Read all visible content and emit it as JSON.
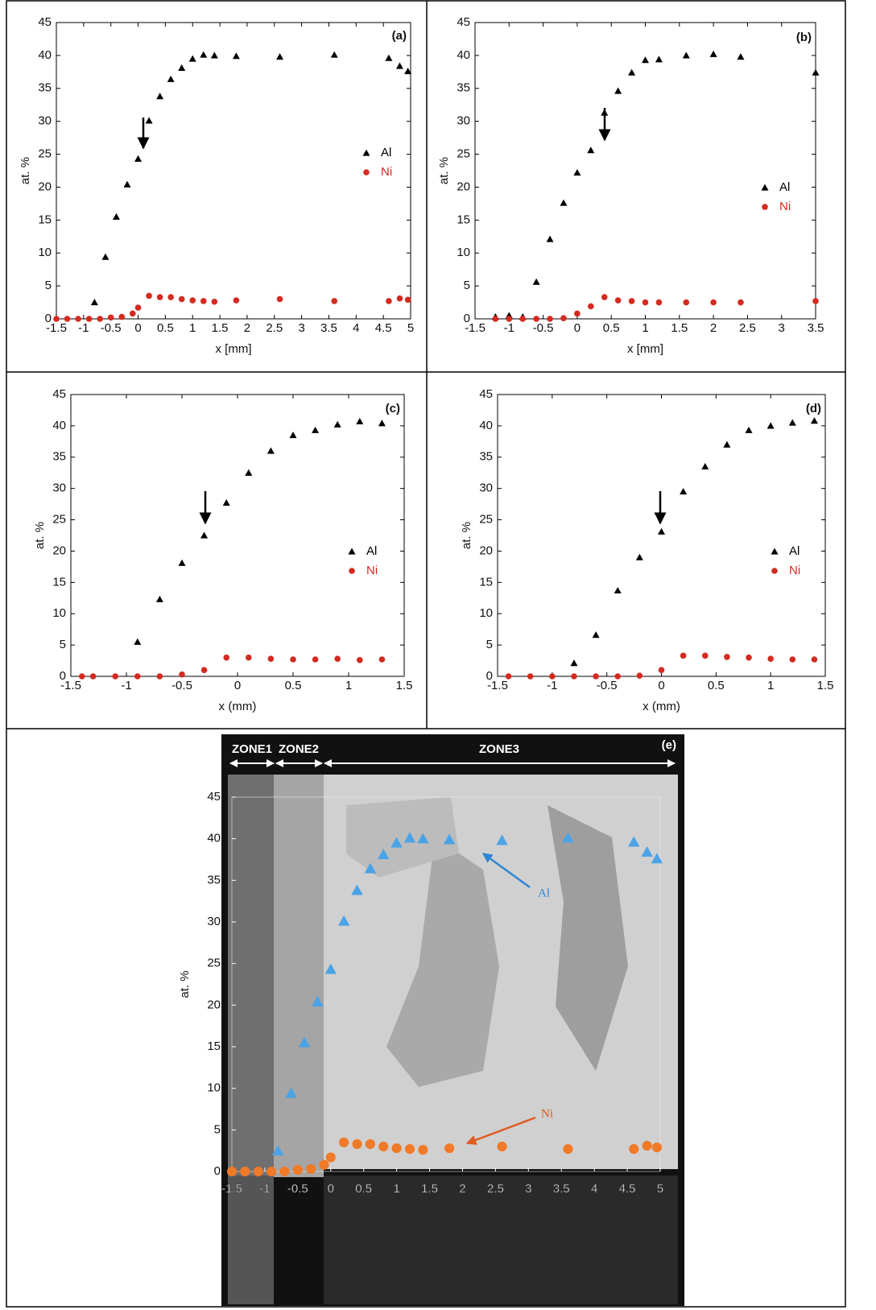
{
  "chart_data": [
    {
      "type": "scatter",
      "label": "(a)",
      "xlabel": "x [mm]",
      "ylabel": "at. %",
      "legend": "right",
      "xlim": [
        -1.5,
        5
      ],
      "ylim": [
        0,
        45
      ],
      "xticks": [
        -1.5,
        -1,
        -0.5,
        0,
        0.5,
        1,
        1.5,
        2,
        2.5,
        3,
        3.5,
        4,
        4.5,
        5
      ],
      "yticks": [
        0,
        5,
        10,
        15,
        20,
        25,
        30,
        35,
        40,
        45
      ],
      "series": [
        {
          "name": "Al",
          "color": "#000000",
          "marker": "triangle",
          "x": [
            -0.8,
            -0.6,
            -0.4,
            -0.2,
            0,
            0.2,
            0.4,
            0.6,
            0.8,
            1.0,
            1.2,
            1.4,
            1.8,
            2.6,
            3.6,
            4.6,
            4.8,
            4.95
          ],
          "values": [
            2.5,
            9.4,
            15.5,
            20.4,
            24.3,
            30.1,
            33.8,
            36.4,
            38.1,
            39.5,
            40.1,
            40,
            39.9,
            39.8,
            40.1,
            39.6,
            38.4,
            37.6
          ]
        },
        {
          "name": "Ni",
          "color": "#d42a20",
          "marker": "circle",
          "x": [
            -1.5,
            -1.3,
            -1.1,
            -0.9,
            -0.7,
            -0.5,
            -0.3,
            -0.1,
            0,
            0.2,
            0.4,
            0.6,
            0.8,
            1,
            1.2,
            1.4,
            1.8,
            2.6,
            3.6,
            4.6,
            4.8,
            4.95
          ],
          "values": [
            0,
            0,
            0,
            0,
            0,
            0.2,
            0.3,
            0.8,
            1.7,
            3.5,
            3.3,
            3.3,
            3,
            2.8,
            2.7,
            2.6,
            2.8,
            3,
            2.7,
            2.7,
            3.1,
            2.9
          ]
        }
      ]
    },
    {
      "type": "scatter",
      "label": "(b)",
      "xlabel": "x [mm]",
      "ylabel": "at. %",
      "legend": "right",
      "xlim": [
        -1.5,
        3.5
      ],
      "ylim": [
        0,
        45
      ],
      "xticks": [
        -1.5,
        -1,
        -0.5,
        0,
        0.5,
        1,
        1.5,
        2,
        2.5,
        3,
        3.5
      ],
      "yticks": [
        0,
        5,
        10,
        15,
        20,
        25,
        30,
        35,
        40,
        45
      ],
      "series": [
        {
          "name": "Al",
          "color": "#000000",
          "marker": "triangle",
          "x": [
            -1.2,
            -1,
            -0.8,
            -0.6,
            -0.4,
            -0.2,
            0,
            0.2,
            0.4,
            0.6,
            0.8,
            1,
            1.2,
            1.6,
            2,
            2.4,
            3.5
          ],
          "values": [
            0.3,
            0.5,
            0.3,
            5.6,
            12.1,
            17.6,
            22.2,
            25.6,
            31.3,
            34.6,
            37.4,
            39.3,
            39.4,
            40,
            40.2,
            39.8,
            37.4
          ]
        },
        {
          "name": "Ni",
          "color": "#d42a20",
          "marker": "circle",
          "x": [
            -1.2,
            -1,
            -0.8,
            -0.6,
            -0.4,
            -0.2,
            0,
            0.2,
            0.4,
            0.6,
            0.8,
            1,
            1.2,
            1.6,
            2,
            2.4,
            3.5
          ],
          "values": [
            0,
            0,
            0,
            0,
            0,
            0.1,
            0.8,
            1.9,
            3.3,
            2.8,
            2.7,
            2.5,
            2.5,
            2.5,
            2.5,
            2.5,
            2.7
          ]
        }
      ]
    },
    {
      "type": "scatter",
      "label": "(c)",
      "xlabel": "x (mm)",
      "ylabel": "at. %",
      "legend": "right",
      "xlim": [
        -1.5,
        1.5
      ],
      "ylim": [
        0,
        45
      ],
      "xticks": [
        -1.5,
        -1,
        -0.5,
        0,
        0.5,
        1,
        1.5
      ],
      "yticks": [
        0,
        5,
        10,
        15,
        20,
        25,
        30,
        35,
        40,
        45
      ],
      "series": [
        {
          "name": "Al",
          "color": "#000000",
          "marker": "triangle",
          "x": [
            -0.9,
            -0.7,
            -0.5,
            -0.3,
            -0.1,
            0.1,
            0.3,
            0.5,
            0.7,
            0.9,
            1.1,
            1.3
          ],
          "values": [
            5.5,
            12.3,
            18.1,
            22.5,
            27.7,
            32.5,
            36,
            38.5,
            39.3,
            40.2,
            40.7,
            40.4
          ]
        },
        {
          "name": "Ni",
          "color": "#d42a20",
          "marker": "circle",
          "x": [
            -1.4,
            -1.3,
            -1.1,
            -0.9,
            -0.7,
            -0.5,
            -0.3,
            -0.1,
            0.1,
            0.3,
            0.5,
            0.7,
            0.9,
            1.1,
            1.3
          ],
          "values": [
            0,
            0,
            0,
            0,
            0,
            0.3,
            1,
            3,
            3,
            2.8,
            2.7,
            2.7,
            2.8,
            2.6,
            2.7
          ]
        }
      ]
    },
    {
      "type": "scatter",
      "label": "(d)",
      "xlabel": "x (mm)",
      "ylabel": "at. %",
      "legend": "right",
      "xlim": [
        -1.5,
        1.5
      ],
      "ylim": [
        0,
        45
      ],
      "xticks": [
        -1.5,
        -1,
        -0.5,
        0,
        0.5,
        1,
        1.5
      ],
      "yticks": [
        0,
        5,
        10,
        15,
        20,
        25,
        30,
        35,
        40,
        45
      ],
      "series": [
        {
          "name": "Al",
          "color": "#000000",
          "marker": "triangle",
          "x": [
            -0.8,
            -0.6,
            -0.4,
            -0.2,
            0,
            0.2,
            0.4,
            0.6,
            0.8,
            1,
            1.2,
            1.4
          ],
          "values": [
            2.1,
            6.6,
            13.7,
            19,
            23.1,
            29.5,
            33.5,
            37,
            39.3,
            40,
            40.5,
            40.8
          ]
        },
        {
          "name": "Ni",
          "color": "#d42a20",
          "marker": "circle",
          "x": [
            -1.4,
            -1.2,
            -1,
            -0.8,
            -0.6,
            -0.4,
            -0.2,
            0,
            0.2,
            0.4,
            0.6,
            0.8,
            1,
            1.2,
            1.4
          ],
          "values": [
            0,
            0,
            0,
            0,
            0,
            0,
            0.1,
            1,
            3.3,
            3.3,
            3.1,
            3,
            2.8,
            2.7,
            2.7
          ]
        }
      ]
    },
    {
      "type": "scatter",
      "label": "(e)",
      "ylabel": "at. %",
      "zones": [
        "ZONE1",
        "ZONE2",
        "ZONE3"
      ],
      "xlim": [
        -1.5,
        5
      ],
      "ylim": [
        0,
        45
      ],
      "xticks": [
        -1.5,
        -1,
        -0.5,
        0,
        0.5,
        1,
        1.5,
        2,
        2.5,
        3,
        3.5,
        4,
        4.5,
        5
      ],
      "yticks": [
        0,
        5,
        10,
        15,
        20,
        25,
        30,
        35,
        40,
        45
      ],
      "series": [
        {
          "name": "Al",
          "color": "#4aa3e6",
          "marker": "triangle",
          "x": [
            -0.8,
            -0.6,
            -0.4,
            -0.2,
            0,
            0.2,
            0.4,
            0.6,
            0.8,
            1.0,
            1.2,
            1.4,
            1.8,
            2.6,
            3.6,
            4.6,
            4.8,
            4.95
          ],
          "values": [
            2.5,
            9.4,
            15.5,
            20.4,
            24.3,
            30.1,
            33.8,
            36.4,
            38.1,
            39.5,
            40.1,
            40,
            39.9,
            39.8,
            40.1,
            39.6,
            38.4,
            37.6
          ]
        },
        {
          "name": "Ni",
          "color": "#f07a28",
          "marker": "circle",
          "x": [
            -1.5,
            -1.3,
            -1.1,
            -0.9,
            -0.7,
            -0.5,
            -0.3,
            -0.1,
            0,
            0.2,
            0.4,
            0.6,
            0.8,
            1,
            1.2,
            1.4,
            1.8,
            2.6,
            3.6,
            4.6,
            4.8,
            4.95
          ],
          "values": [
            0,
            0,
            0,
            0,
            0,
            0.2,
            0.3,
            0.8,
            1.7,
            3.5,
            3.3,
            3.3,
            3,
            2.8,
            2.7,
            2.6,
            2.8,
            3,
            2.7,
            2.7,
            3.1,
            2.9
          ]
        }
      ]
    }
  ]
}
